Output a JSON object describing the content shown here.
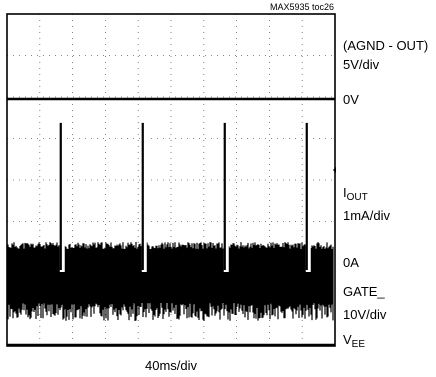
{
  "chart_data": {
    "type": "line",
    "figure_id": "MAX5935 toc26",
    "time_scale": "40ms/div",
    "grid": {
      "divisions_x": 10,
      "divisions_y": 8,
      "shown": true
    },
    "traces": [
      {
        "id": "agnd_out",
        "label_lines": [
          "(AGND - OUT)",
          "5V/div"
        ],
        "level_label": "0V",
        "description": "flat trace at 0V reference"
      },
      {
        "id": "iout",
        "label_main": "I",
        "label_sub": "OUT",
        "scale": "1mA/div",
        "level_label": "0A",
        "pulse_times_ms": [
          68,
          168,
          268,
          368
        ],
        "pulse_amplitude_div": 3.4,
        "noise_band_div": [
          -1.3,
          0.5
        ]
      },
      {
        "id": "gate",
        "label_lines": [
          "GATE_",
          "10V/div"
        ],
        "level_main": "V",
        "level_sub": "EE",
        "description": "flat trace at VEE"
      }
    ]
  }
}
